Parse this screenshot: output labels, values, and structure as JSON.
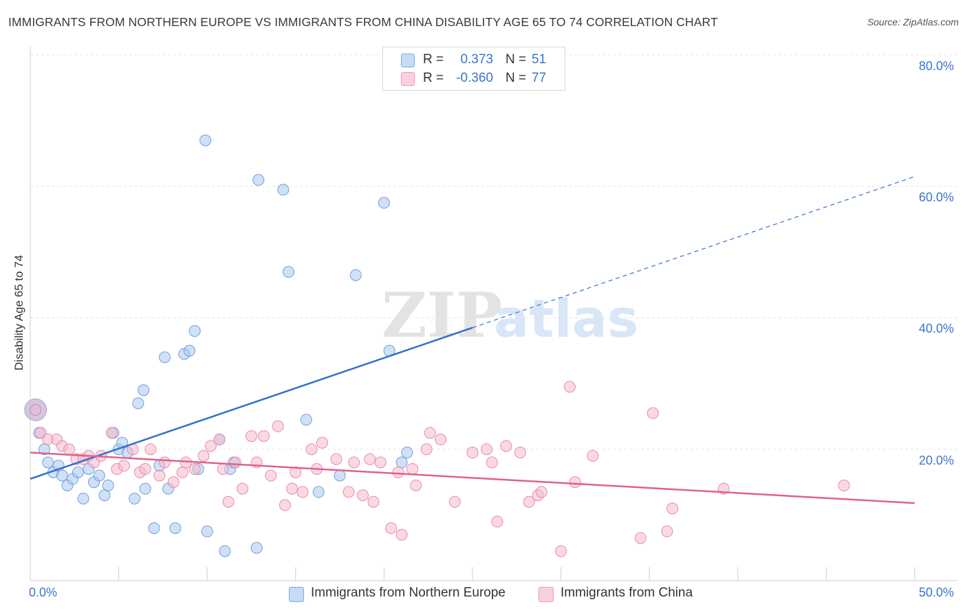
{
  "title": "IMMIGRANTS FROM NORTHERN EUROPE VS IMMIGRANTS FROM CHINA DISABILITY AGE 65 TO 74 CORRELATION CHART",
  "source": "Source: ZipAtlas.com",
  "legend": {
    "rows": [
      {
        "r_label": "R =",
        "r_value": "0.373",
        "n_label": "N =",
        "n_value": "51",
        "color": "#a9c8f0"
      },
      {
        "r_label": "R =",
        "r_value": "-0.360",
        "n_label": "N =",
        "n_value": "77",
        "color": "#f7b9cc"
      }
    ]
  },
  "watermark": {
    "zip": "ZIP",
    "atlas": "atlas"
  },
  "chart_data": {
    "type": "scatter",
    "title": "IMMIGRANTS FROM NORTHERN EUROPE VS IMMIGRANTS FROM CHINA DISABILITY AGE 65 TO 74 CORRELATION CHART",
    "xlabel": "",
    "ylabel": "Disability Age 65 to 74",
    "xlim": [
      0,
      50
    ],
    "ylim": [
      0,
      80
    ],
    "y_ticks": [
      "20.0%",
      "40.0%",
      "60.0%",
      "80.0%"
    ],
    "x_tick_labels": [
      "0.0%",
      "50.0%"
    ],
    "grid": true,
    "series": [
      {
        "name": "Immigrants from Northern Europe",
        "color": "#a9c8f0",
        "stroke": "#6f9fdb",
        "line_color": "#2f6fd0",
        "trend": {
          "x0": 0,
          "y0": 15.5,
          "x1": 25,
          "y1": 38.5,
          "dashed_to_x": 50,
          "dashed_to_y": 61.5
        },
        "points": [
          [
            0.3,
            26.0
          ],
          [
            0.5,
            22.5
          ],
          [
            0.8,
            20.0
          ],
          [
            1.0,
            18.0
          ],
          [
            1.3,
            16.5
          ],
          [
            1.6,
            17.5
          ],
          [
            1.8,
            16.0
          ],
          [
            2.1,
            14.5
          ],
          [
            2.4,
            15.5
          ],
          [
            2.7,
            16.5
          ],
          [
            3.0,
            12.5
          ],
          [
            3.3,
            17.0
          ],
          [
            3.6,
            15.0
          ],
          [
            3.9,
            16.0
          ],
          [
            4.2,
            13.0
          ],
          [
            4.4,
            14.5
          ],
          [
            4.7,
            22.5
          ],
          [
            5.0,
            20.0
          ],
          [
            5.2,
            21.0
          ],
          [
            5.5,
            19.5
          ],
          [
            5.9,
            12.5
          ],
          [
            6.1,
            27.0
          ],
          [
            6.4,
            29.0
          ],
          [
            6.5,
            14.0
          ],
          [
            7.0,
            8.0
          ],
          [
            7.3,
            17.5
          ],
          [
            7.6,
            34.0
          ],
          [
            7.8,
            14.0
          ],
          [
            8.2,
            8.0
          ],
          [
            8.7,
            34.5
          ],
          [
            9.0,
            35.0
          ],
          [
            9.3,
            38.0
          ],
          [
            9.5,
            17.0
          ],
          [
            9.9,
            67.0
          ],
          [
            10.0,
            7.5
          ],
          [
            10.7,
            21.5
          ],
          [
            11.0,
            4.5
          ],
          [
            11.3,
            17.0
          ],
          [
            11.5,
            18.0
          ],
          [
            12.8,
            5.0
          ],
          [
            12.9,
            61.0
          ],
          [
            14.3,
            59.5
          ],
          [
            14.6,
            47.0
          ],
          [
            15.6,
            24.5
          ],
          [
            16.3,
            13.5
          ],
          [
            17.5,
            16.0
          ],
          [
            18.4,
            46.5
          ],
          [
            20.0,
            57.5
          ],
          [
            20.3,
            35.0
          ],
          [
            21.0,
            18.0
          ],
          [
            21.3,
            19.5
          ]
        ]
      },
      {
        "name": "Immigrants from China",
        "color": "#f7b9cc",
        "stroke": "#e88aa8",
        "line_color": "#e0608c",
        "trend": {
          "x0": 0,
          "y0": 19.5,
          "x1": 50,
          "y1": 11.8
        },
        "points": [
          [
            0.3,
            26.0
          ],
          [
            0.6,
            22.5
          ],
          [
            1.0,
            21.5
          ],
          [
            1.5,
            21.5
          ],
          [
            1.8,
            20.5
          ],
          [
            2.2,
            20.0
          ],
          [
            2.6,
            18.5
          ],
          [
            3.0,
            18.5
          ],
          [
            3.3,
            19.0
          ],
          [
            3.6,
            18.0
          ],
          [
            4.0,
            19.0
          ],
          [
            4.6,
            22.5
          ],
          [
            4.9,
            17.0
          ],
          [
            5.3,
            17.5
          ],
          [
            5.8,
            20.0
          ],
          [
            6.2,
            16.5
          ],
          [
            6.5,
            17.0
          ],
          [
            6.8,
            20.0
          ],
          [
            7.3,
            16.0
          ],
          [
            7.6,
            18.0
          ],
          [
            8.1,
            15.0
          ],
          [
            8.6,
            16.5
          ],
          [
            8.8,
            18.0
          ],
          [
            9.3,
            17.0
          ],
          [
            9.8,
            19.0
          ],
          [
            10.2,
            20.5
          ],
          [
            10.7,
            21.5
          ],
          [
            10.9,
            17.0
          ],
          [
            11.2,
            12.0
          ],
          [
            11.6,
            18.0
          ],
          [
            12.0,
            14.0
          ],
          [
            12.5,
            22.0
          ],
          [
            12.8,
            18.0
          ],
          [
            13.2,
            22.0
          ],
          [
            13.6,
            16.0
          ],
          [
            14.0,
            23.5
          ],
          [
            14.4,
            11.5
          ],
          [
            14.8,
            14.0
          ],
          [
            15.0,
            16.5
          ],
          [
            15.4,
            13.5
          ],
          [
            15.9,
            20.0
          ],
          [
            16.2,
            17.0
          ],
          [
            16.5,
            21.0
          ],
          [
            17.3,
            18.5
          ],
          [
            18.0,
            13.5
          ],
          [
            18.3,
            18.0
          ],
          [
            18.8,
            13.0
          ],
          [
            19.2,
            18.5
          ],
          [
            19.4,
            12.0
          ],
          [
            19.8,
            18.0
          ],
          [
            20.4,
            8.0
          ],
          [
            20.8,
            16.5
          ],
          [
            21.0,
            7.0
          ],
          [
            21.6,
            17.0
          ],
          [
            21.8,
            14.5
          ],
          [
            22.4,
            20.0
          ],
          [
            22.6,
            22.5
          ],
          [
            23.2,
            21.5
          ],
          [
            24.0,
            12.0
          ],
          [
            25.0,
            19.5
          ],
          [
            25.8,
            20.0
          ],
          [
            26.1,
            18.0
          ],
          [
            26.4,
            9.0
          ],
          [
            26.9,
            20.5
          ],
          [
            27.7,
            19.5
          ],
          [
            28.2,
            12.0
          ],
          [
            28.7,
            13.0
          ],
          [
            28.9,
            13.5
          ],
          [
            30.0,
            4.5
          ],
          [
            30.5,
            29.5
          ],
          [
            30.8,
            15.0
          ],
          [
            31.8,
            19.0
          ],
          [
            34.5,
            6.5
          ],
          [
            35.2,
            25.5
          ],
          [
            36.0,
            7.5
          ],
          [
            36.3,
            11.0
          ],
          [
            39.2,
            14.0
          ],
          [
            46.0,
            14.5
          ]
        ]
      }
    ],
    "marker_radius": 8,
    "large_marker": {
      "x": 0.3,
      "y": 26.0,
      "radius": 16
    }
  }
}
